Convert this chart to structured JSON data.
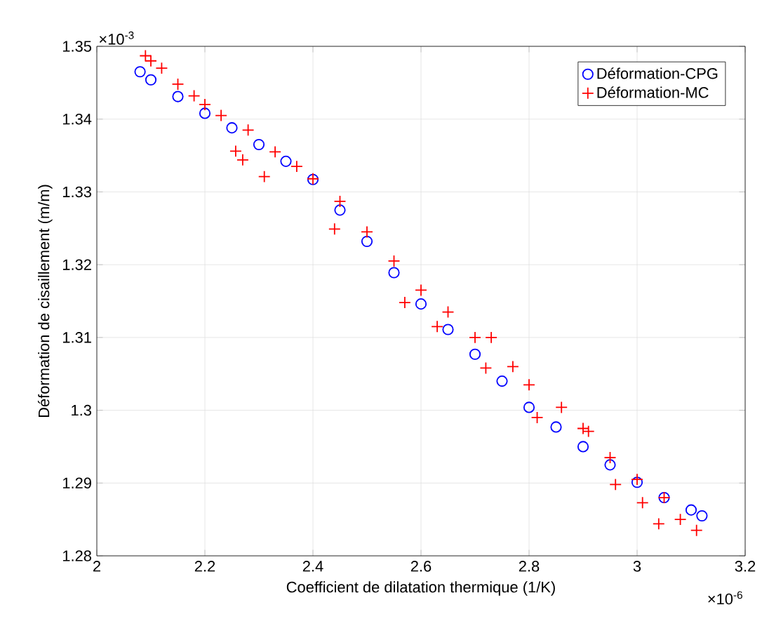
{
  "chart_data": {
    "type": "scatter",
    "xlabel": "Coefficient de dilatation thermique (1/K)",
    "ylabel": "Déformation de cisaillement (m/m)",
    "annotations": [
      "×10$^{-3}$",
      "×10$^{-6}$"
    ],
    "xlim": [
      2,
      3.2
    ],
    "xticks": [
      2,
      2.2,
      2.4,
      2.6,
      2.8,
      3,
      3.2
    ],
    "ylim": [
      1.28,
      1.35
    ],
    "yticks": [
      1.28,
      1.29,
      1.3,
      1.31,
      1.32,
      1.33,
      1.34,
      1.35
    ],
    "grid": true,
    "legend": "top right",
    "series": [
      {
        "name": "Déformation-CPG",
        "color": "#0000ff",
        "marker": "circle",
        "x": [
          2.08,
          2.1,
          2.15,
          2.2,
          2.25,
          2.3,
          2.35,
          2.4,
          2.45,
          2.5,
          2.55,
          2.6,
          2.65,
          2.7,
          2.75,
          2.8,
          2.85,
          2.9,
          2.95,
          3.0,
          3.05,
          3.1,
          3.12
        ],
        "values": [
          1.3465,
          1.3454,
          1.3431,
          1.3408,
          1.3388,
          1.3365,
          1.3342,
          1.3317,
          1.3275,
          1.3232,
          1.3189,
          1.3146,
          1.3111,
          1.3077,
          1.304,
          1.3004,
          1.2977,
          1.295,
          1.2925,
          1.2901,
          1.288,
          1.2863,
          1.2855
        ]
      },
      {
        "name": "Déformation-MC",
        "color": "#ff0000",
        "marker": "cross",
        "x": [
          2.09,
          2.1,
          2.12,
          2.15,
          2.18,
          2.2,
          2.23,
          2.257,
          2.27,
          2.28,
          2.31,
          2.33,
          2.37,
          2.4,
          2.44,
          2.45,
          2.5,
          2.55,
          2.57,
          2.6,
          2.63,
          2.65,
          2.7,
          2.72,
          2.73,
          2.77,
          2.8,
          2.815,
          2.86,
          2.9,
          2.91,
          2.95,
          2.96,
          3.0,
          3.01,
          3.04,
          3.05,
          3.08,
          3.11
        ],
        "values": [
          1.3487,
          1.348,
          1.347,
          1.3448,
          1.3432,
          1.342,
          1.3405,
          1.3356,
          1.3344,
          1.3385,
          1.3321,
          1.3355,
          1.3335,
          1.3318,
          1.3249,
          1.3287,
          1.3245,
          1.3205,
          1.3148,
          1.3165,
          1.3115,
          1.3135,
          1.31,
          1.3058,
          1.31,
          1.306,
          1.3035,
          1.299,
          1.3004,
          1.2975,
          1.2971,
          1.2935,
          1.2898,
          1.2905,
          1.2873,
          1.2844,
          1.288,
          1.285,
          1.2835
        ]
      }
    ]
  }
}
